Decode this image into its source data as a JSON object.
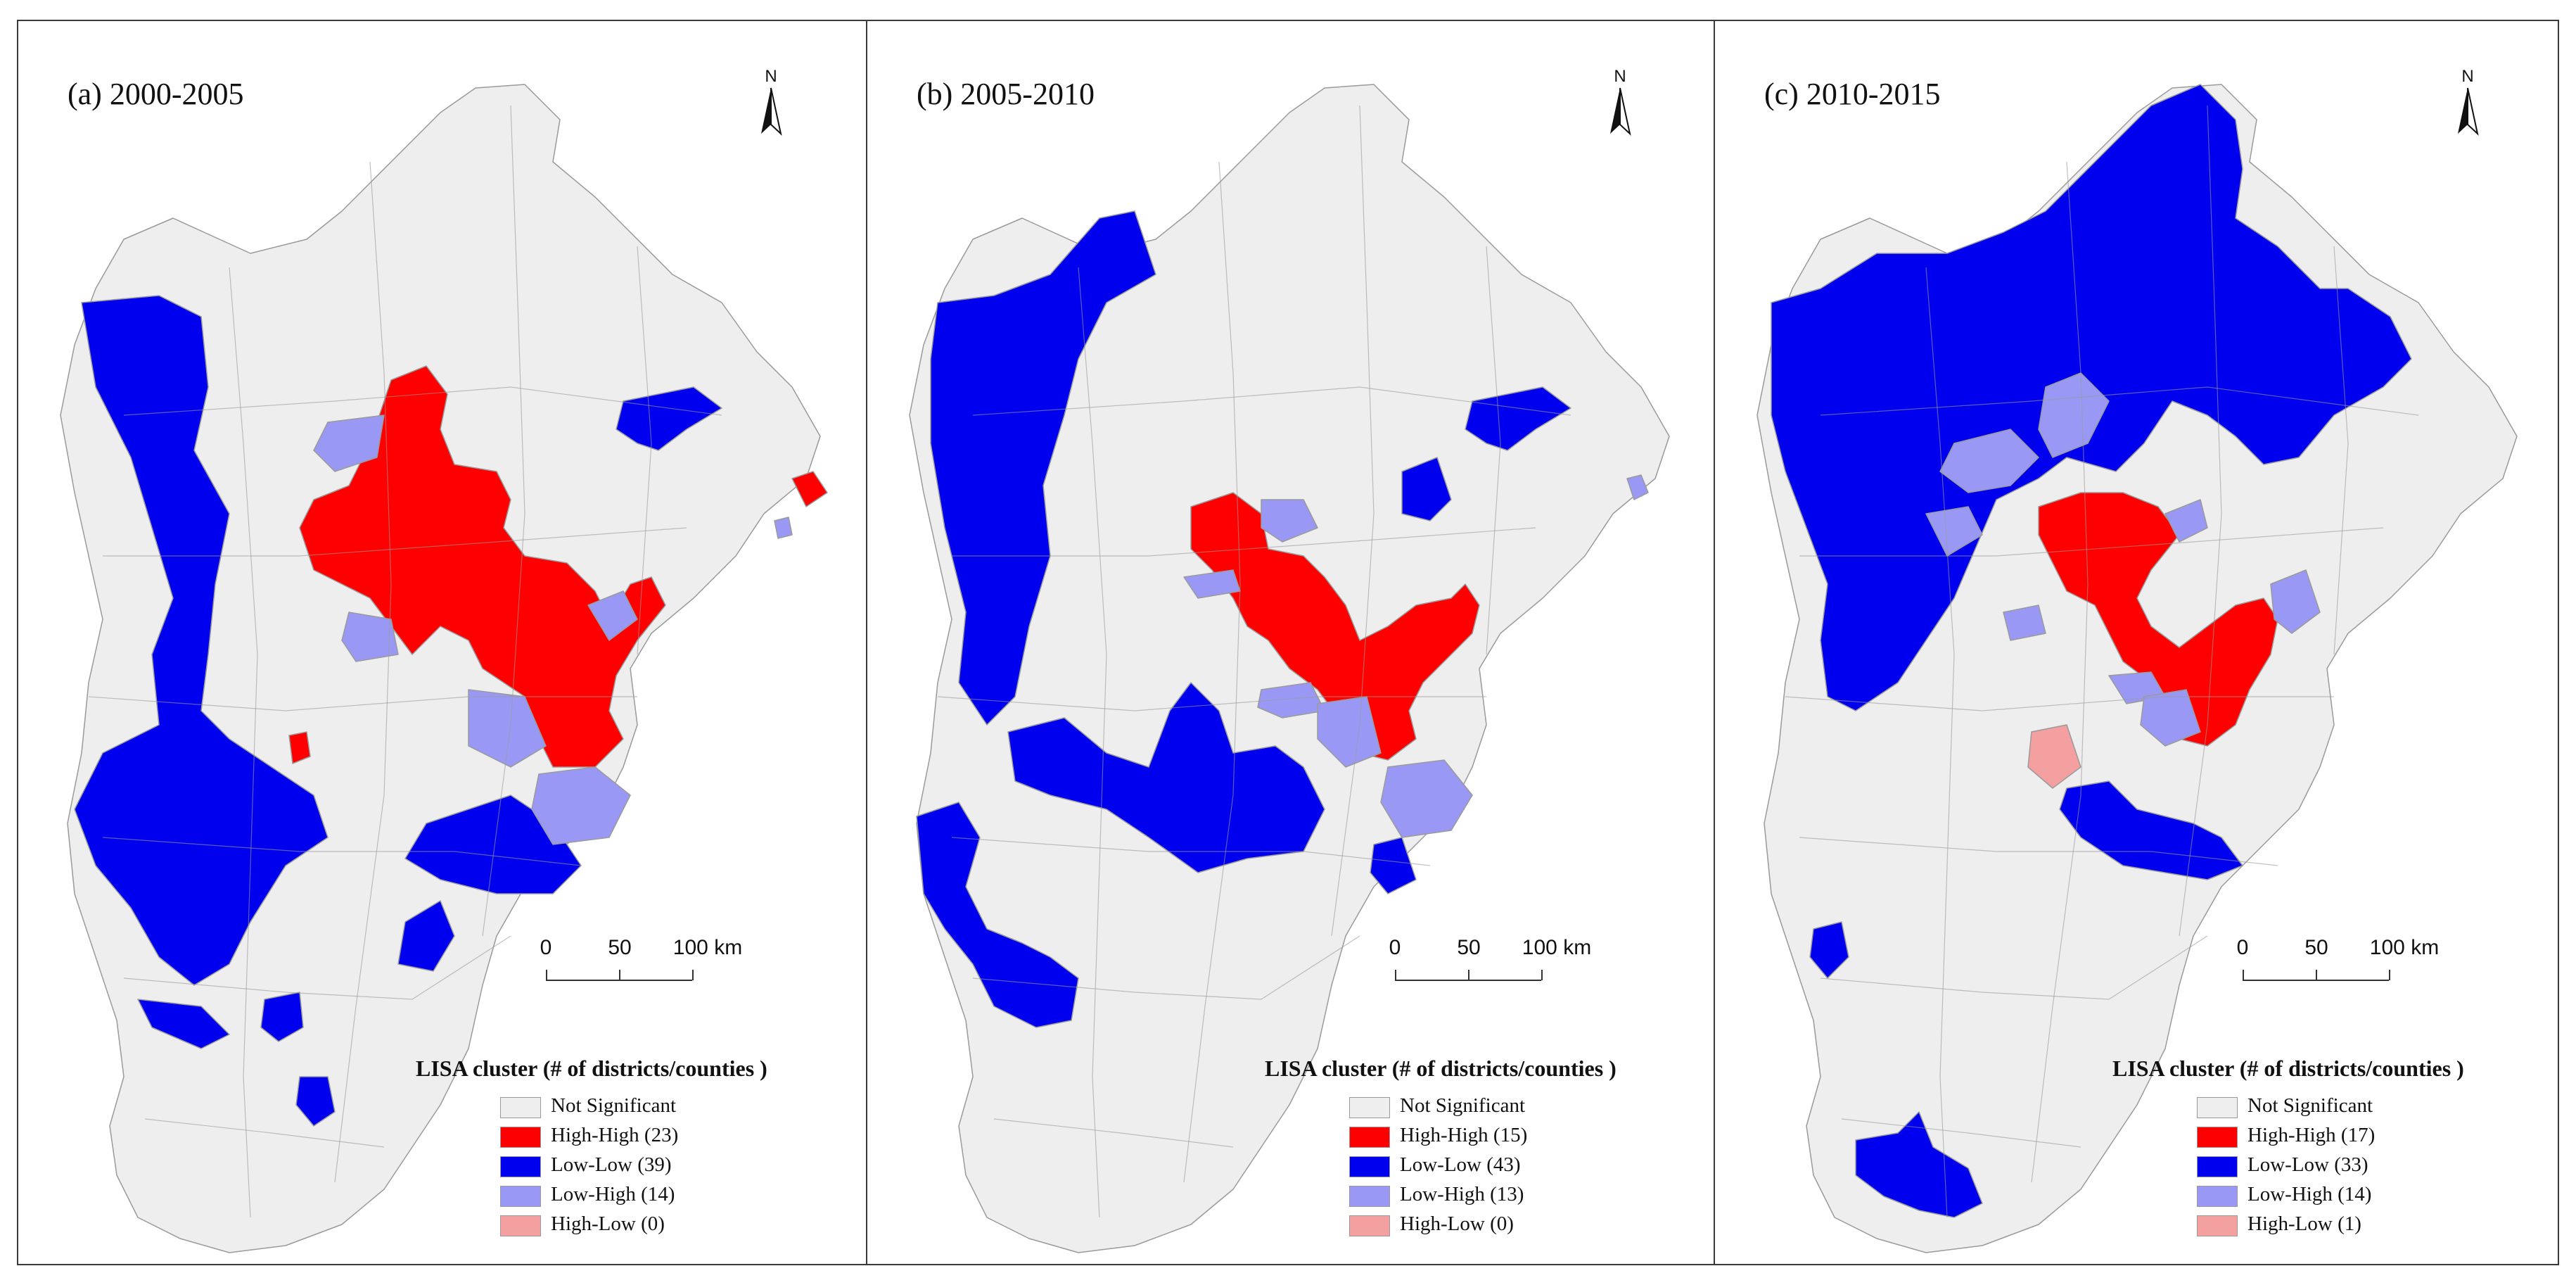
{
  "legend_title": "LISA cluster (# of districts/counties )",
  "colors": {
    "not_significant": "#eeeeee",
    "high_high": "#ff0000",
    "low_low": "#0000ee",
    "low_high": "#9999f5",
    "high_low": "#f5a0a0",
    "boundary": "#9a9a9a"
  },
  "north_label": "N",
  "scale": {
    "ticks": [
      "0",
      "50",
      "100 km"
    ]
  },
  "panels": [
    {
      "title": "(a) 2000-2005",
      "legend": [
        "Not Significant",
        "High-High (23)",
        "Low-Low (39)",
        "Low-High (14)",
        "High-Low (0)"
      ],
      "counts": {
        "high_high": 23,
        "low_low": 39,
        "low_high": 14,
        "high_low": 0
      }
    },
    {
      "title": "(b) 2005-2010",
      "legend": [
        "Not Significant",
        "High-High (15)",
        "Low-Low (43)",
        "Low-High (13)",
        "High-Low (0)"
      ],
      "counts": {
        "high_high": 15,
        "low_low": 43,
        "low_high": 13,
        "high_low": 0
      }
    },
    {
      "title": "(c) 2010-2015",
      "legend": [
        "Not Significant",
        "High-High (17)",
        "Low-Low (33)",
        "Low-High (14)",
        "High-Low (1)"
      ],
      "counts": {
        "high_high": 17,
        "low_low": 33,
        "low_high": 14,
        "high_low": 1
      }
    }
  ]
}
